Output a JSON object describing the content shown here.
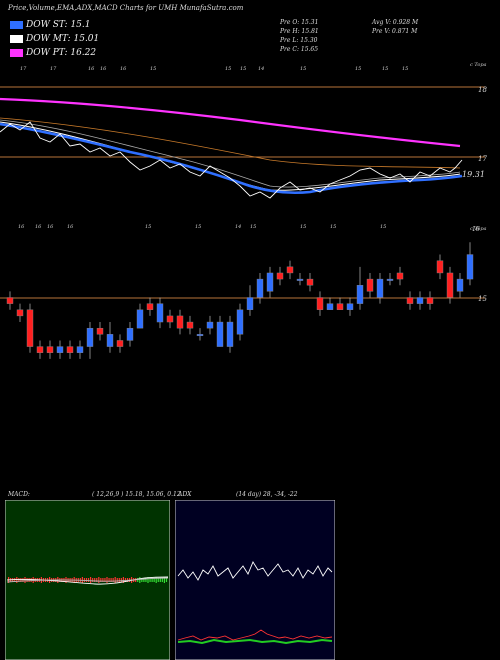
{
  "header": {
    "title": "Price,Volume,EMA,ADX,MACD Charts for UMH MunafaSutra.com"
  },
  "legend": [
    {
      "label": "DOW ST: 15.1",
      "color": "#2f6fff"
    },
    {
      "label": "DOW MT: 15.01",
      "color": "#ffffff"
    },
    {
      "label": "DOW PT: 16.22",
      "color": "#ff33ff"
    }
  ],
  "ohlc": {
    "open": "Pre  O: 15.31",
    "high": "Pre  H: 15.81",
    "low": "Pre  L: 15.30",
    "close": "Pre  C: 15.65",
    "avg_volume": "Avg V: 0.928  M",
    "prev_volume": "Pre  V: 0.871 M"
  },
  "ema_panel": {
    "top_labels": [
      "17",
      "17",
      "16",
      "16",
      "16",
      "15",
      "15",
      "15",
      "14",
      "15",
      "15",
      "15",
      "15"
    ],
    "right_top": "c Topa",
    "right_axis": [
      "18",
      "17"
    ],
    "price_label": "19.31",
    "bottom_labels": [
      "16",
      "16",
      "16",
      "16",
      "15",
      "15",
      "14",
      "15",
      "15",
      "15",
      "15"
    ],
    "line_colors": {
      "pt": "#ff33ff",
      "mt_outer": "#aaaaaa",
      "st": "#2f6fff",
      "price": "#ffffff",
      "orange": "#c87a2a"
    }
  },
  "candle_panel": {
    "right_axis": [
      "16",
      "15"
    ],
    "right_top": "c Topa",
    "up_color": "#2f6fff",
    "down_color": "#ff2020"
  },
  "macd_panel": {
    "label": "MACD:",
    "values": "( 12,26,9 ) 15.18, 15.06, 0.12",
    "bg_color": "#003300"
  },
  "adx_panel": {
    "label": "ADX",
    "values": "(14  day) 28, -34, -22",
    "bg_color": "#000022"
  },
  "chart_data": [
    {
      "type": "line",
      "title": "Price,Volume,EMA,ADX,MACD Charts for UMH MunafaSutra.com",
      "series": [
        {
          "name": "DOW ST: 15.1",
          "color": "#2f6fff"
        },
        {
          "name": "DOW MT: 15.01",
          "color": "#ffffff"
        },
        {
          "name": "DOW PT: 16.22",
          "color": "#ff33ff"
        }
      ],
      "latest_close": 15.65
    },
    {
      "type": "bar",
      "subtype": "candlestick",
      "candles": [
        {
          "o": 15.1,
          "c": 15.0,
          "h": 15.2,
          "l": 14.9
        },
        {
          "o": 14.9,
          "c": 14.8,
          "h": 15.0,
          "l": 14.7
        },
        {
          "o": 14.9,
          "c": 14.3,
          "h": 15.0,
          "l": 14.2
        },
        {
          "o": 14.3,
          "c": 14.2,
          "h": 14.4,
          "l": 14.1
        },
        {
          "o": 14.3,
          "c": 14.2,
          "h": 14.4,
          "l": 14.1
        },
        {
          "o": 14.2,
          "c": 14.3,
          "h": 14.4,
          "l": 14.1
        },
        {
          "o": 14.3,
          "c": 14.2,
          "h": 14.4,
          "l": 14.1
        },
        {
          "o": 14.2,
          "c": 14.3,
          "h": 14.4,
          "l": 14.1
        },
        {
          "o": 14.3,
          "c": 14.6,
          "h": 14.7,
          "l": 14.1
        },
        {
          "o": 14.6,
          "c": 14.5,
          "h": 14.7,
          "l": 14.4
        },
        {
          "o": 14.3,
          "c": 14.5,
          "h": 14.7,
          "l": 14.2
        },
        {
          "o": 14.4,
          "c": 14.3,
          "h": 14.5,
          "l": 14.2
        },
        {
          "o": 14.4,
          "c": 14.6,
          "h": 14.7,
          "l": 14.3
        },
        {
          "o": 14.6,
          "c": 14.9,
          "h": 15.0,
          "l": 14.6
        },
        {
          "o": 15.0,
          "c": 14.9,
          "h": 15.1,
          "l": 14.8
        },
        {
          "o": 14.7,
          "c": 15.0,
          "h": 15.1,
          "l": 14.6
        },
        {
          "o": 14.8,
          "c": 14.7,
          "h": 14.9,
          "l": 14.6
        },
        {
          "o": 14.8,
          "c": 14.6,
          "h": 14.9,
          "l": 14.5
        },
        {
          "o": 14.7,
          "c": 14.6,
          "h": 14.8,
          "l": 14.5
        },
        {
          "o": 14.5,
          "c": 14.5,
          "h": 14.6,
          "l": 14.4
        },
        {
          "o": 14.6,
          "c": 14.7,
          "h": 14.8,
          "l": 14.5
        },
        {
          "o": 14.3,
          "c": 14.7,
          "h": 14.8,
          "l": 14.3
        },
        {
          "o": 14.3,
          "c": 14.7,
          "h": 14.8,
          "l": 14.2
        },
        {
          "o": 14.5,
          "c": 14.9,
          "h": 15.0,
          "l": 14.4
        },
        {
          "o": 14.9,
          "c": 15.1,
          "h": 15.3,
          "l": 14.8
        },
        {
          "o": 15.1,
          "c": 15.4,
          "h": 15.5,
          "l": 15.0
        },
        {
          "o": 15.2,
          "c": 15.5,
          "h": 15.6,
          "l": 15.1
        },
        {
          "o": 15.5,
          "c": 15.4,
          "h": 15.6,
          "l": 15.3
        },
        {
          "o": 15.6,
          "c": 15.5,
          "h": 15.7,
          "l": 15.4
        },
        {
          "o": 15.4,
          "c": 15.4,
          "h": 15.5,
          "l": 15.3
        },
        {
          "o": 15.4,
          "c": 15.3,
          "h": 15.5,
          "l": 15.2
        },
        {
          "o": 15.1,
          "c": 14.9,
          "h": 15.2,
          "l": 14.8
        },
        {
          "o": 14.9,
          "c": 15.0,
          "h": 15.1,
          "l": 14.9
        },
        {
          "o": 15.0,
          "c": 14.9,
          "h": 15.1,
          "l": 14.9
        },
        {
          "o": 14.9,
          "c": 15.0,
          "h": 15.1,
          "l": 14.8
        },
        {
          "o": 15.0,
          "c": 15.3,
          "h": 15.6,
          "l": 14.9
        },
        {
          "o": 15.4,
          "c": 15.2,
          "h": 15.5,
          "l": 15.1
        },
        {
          "o": 15.1,
          "c": 15.4,
          "h": 15.5,
          "l": 15.0
        },
        {
          "o": 15.4,
          "c": 15.4,
          "h": 15.5,
          "l": 15.3
        },
        {
          "o": 15.5,
          "c": 15.4,
          "h": 15.6,
          "l": 15.3
        },
        {
          "o": 15.1,
          "c": 15.0,
          "h": 15.2,
          "l": 14.9
        },
        {
          "o": 15.0,
          "c": 15.1,
          "h": 15.2,
          "l": 14.9
        },
        {
          "o": 15.1,
          "c": 15.0,
          "h": 15.2,
          "l": 14.9
        },
        {
          "o": 15.7,
          "c": 15.5,
          "h": 15.8,
          "l": 15.4
        },
        {
          "o": 15.5,
          "c": 15.1,
          "h": 15.6,
          "l": 15.0
        },
        {
          "o": 15.2,
          "c": 15.4,
          "h": 15.5,
          "l": 15.1
        },
        {
          "o": 15.4,
          "c": 15.8,
          "h": 16.0,
          "l": 15.3
        }
      ]
    }
  ]
}
